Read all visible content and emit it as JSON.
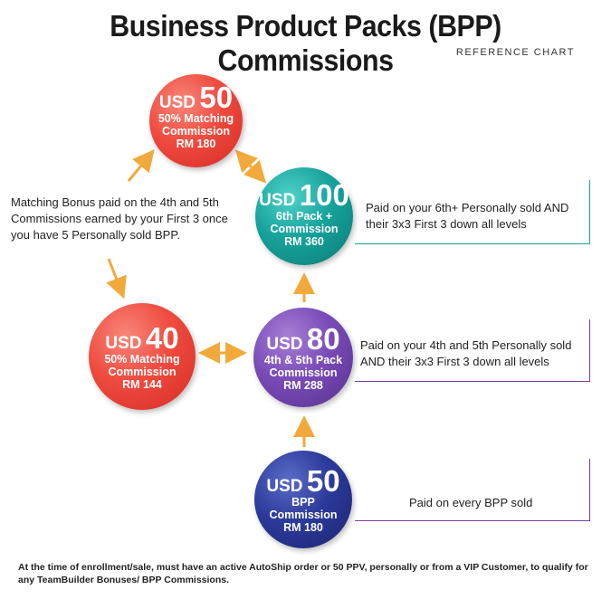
{
  "title": "Business Product Packs (BPP) Commissions",
  "subtitle": "REFERENCE CHART",
  "circles": {
    "top_match": {
      "currency": "USD",
      "amount": "50",
      "line1": "50% Matching",
      "line2": "Commission",
      "line3": "RM 180"
    },
    "sixth_pack": {
      "currency": "USD",
      "amount": "100",
      "line1": "6th Pack +",
      "line2": "Commission",
      "line3": "RM 360"
    },
    "left_match": {
      "currency": "USD",
      "amount": "40",
      "line1": "50% Matching",
      "line2": "Commission",
      "line3": "RM 144"
    },
    "fourth_fifth": {
      "currency": "USD",
      "amount": "80",
      "line1": "4th & 5th Pack",
      "line2": "Commission",
      "line3": "RM 288"
    },
    "bpp": {
      "currency": "USD",
      "amount": "50",
      "line1": "BPP",
      "line2": "Commission",
      "line3": "RM 180"
    }
  },
  "notes": {
    "matching_bonus": "Matching Bonus paid on the 4th and 5th Commissions earned by your First 3 once you have 5 Personally sold BPP.",
    "sixth_pack": "Paid on your 6th+ Personally sold AND their 3x3 First 3 down all levels",
    "fourth_fifth": "Paid on your 4th and 5th Personally sold AND their 3x3 First 3 down all levels",
    "bpp": "Paid on every BPP sold"
  },
  "footer": "At the time of enrollment/sale, must have an active AutoShip order or 50 PPV, personally or from a VIP Customer, to qualify for any TeamBuilder Bonuses/ BPP Commissions.",
  "colors": {
    "red": "#ef4b3f",
    "teal": "#17a39c",
    "purple": "#7a4bb7",
    "navy": "#2c3a9a",
    "arrow": "#f2a93b",
    "bracket_teal": "#17a39c",
    "bracket_purple": "#7a3fa0"
  }
}
